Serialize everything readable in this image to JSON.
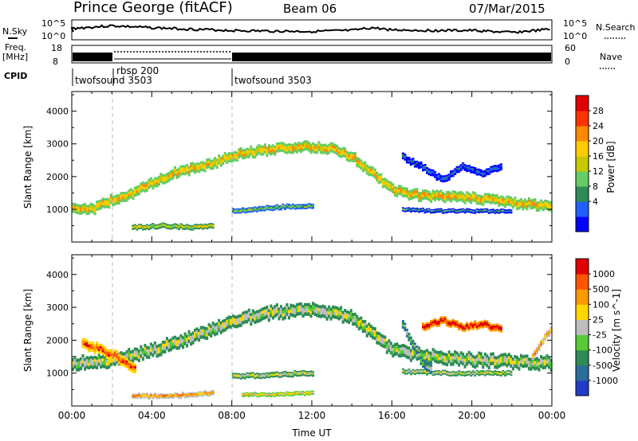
{
  "header": {
    "station": "Prince George (fitACF)",
    "beam": "Beam 06",
    "date": "07/Mar/2015"
  },
  "panels": {
    "nsky_label": "N.Sky",
    "nsky_ticks": [
      "10^5",
      "10^0"
    ],
    "nsearch_label": "N.Search",
    "nsearch_ticks": [
      "10^5",
      "10^0"
    ],
    "freq_label_1": "Freq.",
    "freq_label_2": "[MHz]",
    "freq_ticks": [
      "18",
      "8"
    ],
    "nave_label": "Nave",
    "nave_ticks": [
      "60",
      "0"
    ],
    "cpid_label": "CPID",
    "cpid_segments": [
      {
        "label": "twofsound 3503",
        "start_h": 0,
        "end_h": 2
      },
      {
        "label": "rbsp 200",
        "start_h": 2,
        "end_h": 8
      },
      {
        "label": "twofsound 3503",
        "start_h": 8,
        "end_h": 24
      }
    ]
  },
  "colorbars": {
    "power": {
      "title": "Power [dB]",
      "ticks": [
        "28",
        "24",
        "20",
        "16",
        "12",
        "8",
        "4"
      ],
      "colors": [
        "#0000ff",
        "#1f5fff",
        "#2e8b57",
        "#66cc66",
        "#c8c800",
        "#ffcc00",
        "#ff8800",
        "#ff3300",
        "#e00000"
      ]
    },
    "velocity": {
      "title": "Velocity [m s^-1]",
      "ticks": [
        "1000",
        "500",
        "100",
        "25",
        "-25",
        "-100",
        "-500",
        "-1000"
      ],
      "colors": [
        "#1e3cc8",
        "#2a6e9e",
        "#2e8b57",
        "#55cc33",
        "#bebebe",
        "#ffd700",
        "#ff9900",
        "#ff5500",
        "#e00000"
      ]
    }
  },
  "chart_data": [
    {
      "type": "heatmap",
      "name": "power",
      "xlabel": "",
      "ylabel": "Slant Range [km]",
      "xlim": [
        0,
        24
      ],
      "ylim": [
        0,
        4600
      ],
      "yticks": [
        "1000",
        "2000",
        "3000",
        "4000"
      ],
      "bands": [
        {
          "pts": [
            [
              0,
              1050
            ],
            [
              1,
              1000
            ],
            [
              2,
              1300
            ],
            [
              3,
              1500
            ],
            [
              4,
              1800
            ],
            [
              5,
              2100
            ],
            [
              6,
              2250
            ],
            [
              7,
              2400
            ],
            [
              8,
              2650
            ],
            [
              9,
              2750
            ],
            [
              10,
              2850
            ],
            [
              11,
              2900
            ],
            [
              12,
              2900
            ],
            [
              13,
              2850
            ],
            [
              14,
              2600
            ],
            [
              15,
              2100
            ],
            [
              16,
              1600
            ],
            [
              17,
              1450
            ],
            [
              18,
              1400
            ],
            [
              19,
              1380
            ],
            [
              20,
              1350
            ],
            [
              21,
              1300
            ],
            [
              22,
              1200
            ],
            [
              23,
              1150
            ],
            [
              24,
              1100
            ]
          ],
          "w": 300,
          "c": 5
        },
        {
          "pts": [
            [
              8,
              950
            ],
            [
              9,
              1000
            ],
            [
              10,
              1050
            ],
            [
              11,
              1100
            ],
            [
              12,
              1100
            ]
          ],
          "w": 150,
          "c": 3
        },
        {
          "pts": [
            [
              16.5,
              1000
            ],
            [
              18,
              950
            ],
            [
              20,
              950
            ],
            [
              22,
              950
            ]
          ],
          "w": 120,
          "c": 2
        },
        {
          "pts": [
            [
              3,
              450
            ],
            [
              4.5,
              500
            ],
            [
              6,
              450
            ],
            [
              7,
              500
            ]
          ],
          "w": 150,
          "c": 4
        },
        {
          "pts": [
            [
              16.5,
              2600
            ],
            [
              17.5,
              2300
            ],
            [
              18.5,
              1900
            ],
            [
              19.5,
              2300
            ],
            [
              20.5,
              2100
            ],
            [
              21.5,
              2300
            ]
          ],
          "w": 200,
          "c": 1
        }
      ]
    },
    {
      "type": "heatmap",
      "name": "velocity",
      "xlabel": "Time UT",
      "ylabel": "Slant Range [km]",
      "xlim": [
        0,
        24
      ],
      "ylim": [
        0,
        4600
      ],
      "yticks": [
        "1000",
        "2000",
        "3000",
        "4000"
      ],
      "xticks": [
        "00:00",
        "04:00",
        "08:00",
        "12:00",
        "16:00",
        "20:00",
        "00:00"
      ],
      "bands": [
        {
          "pts": [
            [
              0,
              1300
            ],
            [
              2,
              1400
            ],
            [
              4,
              1700
            ],
            [
              6,
              2100
            ],
            [
              8,
              2600
            ],
            [
              10,
              2850
            ],
            [
              12,
              2950
            ],
            [
              14,
              2700
            ],
            [
              15,
              2200
            ],
            [
              16,
              1700
            ],
            [
              18,
              1500
            ],
            [
              20,
              1400
            ],
            [
              22,
              1350
            ],
            [
              24,
              1300
            ]
          ],
          "w": 380,
          "c": 4
        },
        {
          "pts": [
            [
              8,
              900
            ],
            [
              10,
              950
            ],
            [
              12,
              1000
            ]
          ],
          "w": 160,
          "c": 4
        },
        {
          "pts": [
            [
              16.5,
              1050
            ],
            [
              19,
              1000
            ],
            [
              22,
              1000
            ]
          ],
          "w": 140,
          "c": 4
        },
        {
          "pts": [
            [
              0.5,
              1900
            ],
            [
              1.5,
              1700
            ],
            [
              2.5,
              1400
            ],
            [
              3.2,
              1100
            ]
          ],
          "w": 300,
          "c": 7
        },
        {
          "pts": [
            [
              3,
              300
            ],
            [
              4.5,
              300
            ],
            [
              6,
              350
            ],
            [
              7,
              400
            ]
          ],
          "w": 150,
          "c": 6
        },
        {
          "pts": [
            [
              8.5,
              350
            ],
            [
              10,
              350
            ],
            [
              12,
              400
            ]
          ],
          "w": 120,
          "c": 5
        },
        {
          "pts": [
            [
              16.5,
              2500
            ],
            [
              17,
              1900
            ],
            [
              17.5,
              1300
            ],
            [
              18,
              1100
            ]
          ],
          "w": 250,
          "c": 3
        },
        {
          "pts": [
            [
              17.5,
              2400
            ],
            [
              18.5,
              2600
            ],
            [
              19.5,
              2400
            ],
            [
              20.5,
              2500
            ],
            [
              21.5,
              2300
            ]
          ],
          "w": 220,
          "c": 8
        },
        {
          "pts": [
            [
              23,
              1500
            ],
            [
              23.5,
              2000
            ],
            [
              24,
              2400
            ]
          ],
          "w": 200,
          "c": 6
        }
      ]
    }
  ]
}
